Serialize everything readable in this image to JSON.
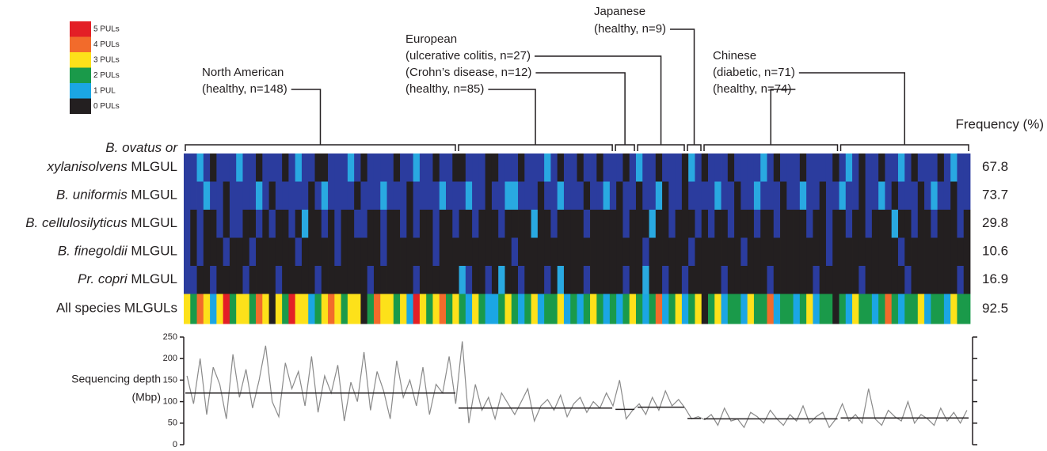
{
  "chart_data": [
    {
      "type": "heatmap",
      "legend": [
        "0 PULs",
        "1 PUL",
        "2 PULs",
        "3 PULs",
        "4 PULs",
        "5 PULs"
      ],
      "pul_colors": [
        "#231f20",
        "#1ba6e4",
        "#1a9a4a",
        "#fde11a",
        "#f26b2b",
        "#e31f26"
      ],
      "species_colors": [
        "#231f20",
        "#2b3c9e",
        "#29a9e1"
      ],
      "frequency_title": "Frequency (%)",
      "regions": [
        {
          "name": "North American",
          "cohorts": [
            {
              "label": "(healthy, n=148)",
              "n": 148
            }
          ]
        },
        {
          "name": "European",
          "cohorts": [
            {
              "label": "(healthy, n=85)",
              "n": 85
            },
            {
              "label": "(Crohn’s disease, n=12)",
              "n": 12
            },
            {
              "label": "(ulcerative colitis, n=27)",
              "n": 27
            }
          ]
        },
        {
          "name": "Japanese",
          "cohorts": [
            {
              "label": "(healthy, n=9)",
              "n": 9
            }
          ]
        },
        {
          "name": "Chinese",
          "cohorts": [
            {
              "label": "(healthy, n=74)",
              "n": 74
            },
            {
              "label": "(diabetic, n=71)",
              "n": 71
            }
          ]
        }
      ],
      "rows": [
        {
          "name_lines": [
            {
              "italic": "B. ovatus or"
            },
            {
              "italic": "xylanisolvens",
              "plain": "MLGUL"
            }
          ],
          "frequency": 67.8,
          "values": [
            1,
            1,
            2,
            1,
            0,
            1,
            1,
            1,
            2,
            1,
            1,
            0,
            1,
            1,
            1,
            0,
            1,
            2,
            1,
            1,
            0,
            0,
            1,
            1,
            1,
            2,
            1,
            0,
            1,
            1,
            1,
            1,
            0,
            1,
            1,
            2,
            1,
            1,
            0,
            1,
            1,
            0,
            0,
            1,
            1,
            1,
            0,
            0,
            1,
            1,
            1,
            0,
            1,
            1,
            1,
            2,
            1,
            0,
            1,
            1,
            0,
            1,
            1,
            0,
            1,
            1,
            1,
            0,
            1,
            2,
            1,
            1,
            0,
            1,
            1,
            1,
            0,
            2,
            1,
            0,
            1,
            1,
            1,
            0,
            1,
            1,
            1,
            1,
            2,
            1,
            0,
            1,
            1,
            1,
            0,
            1,
            1,
            1,
            1,
            0,
            1,
            2,
            1,
            0,
            1,
            1,
            0,
            1,
            1,
            2,
            1,
            0,
            1,
            1,
            1,
            0,
            1,
            2,
            1,
            1
          ]
        },
        {
          "name_lines": [
            {
              "italic": "B. uniformis",
              "plain": "MLGUL"
            }
          ],
          "frequency": 73.7,
          "values": [
            1,
            1,
            1,
            2,
            1,
            1,
            0,
            1,
            1,
            1,
            1,
            2,
            1,
            0,
            1,
            1,
            1,
            1,
            1,
            0,
            1,
            2,
            1,
            1,
            1,
            1,
            0,
            1,
            1,
            1,
            2,
            1,
            1,
            1,
            0,
            1,
            1,
            1,
            1,
            2,
            1,
            1,
            1,
            2,
            1,
            1,
            0,
            1,
            1,
            2,
            2,
            1,
            1,
            1,
            0,
            1,
            1,
            2,
            1,
            1,
            1,
            0,
            1,
            1,
            2,
            1,
            0,
            1,
            1,
            0,
            1,
            1,
            2,
            0,
            1,
            1,
            0,
            1,
            1,
            1,
            1,
            2,
            1,
            1,
            0,
            1,
            1,
            2,
            1,
            1,
            1,
            0,
            1,
            1,
            2,
            1,
            1,
            0,
            1,
            1,
            2,
            1,
            1,
            0,
            1,
            1,
            2,
            1,
            0,
            1,
            1,
            1,
            0,
            1,
            2,
            1,
            1,
            0,
            1,
            1
          ]
        },
        {
          "name_lines": [
            {
              "italic": "B. cellulosilyticus",
              "plain": "MLGUL"
            }
          ],
          "frequency": 29.8,
          "values": [
            1,
            0,
            1,
            0,
            0,
            1,
            0,
            1,
            1,
            0,
            0,
            1,
            0,
            1,
            0,
            0,
            1,
            0,
            2,
            0,
            0,
            1,
            0,
            1,
            0,
            0,
            1,
            1,
            0,
            0,
            1,
            0,
            0,
            1,
            0,
            1,
            0,
            0,
            1,
            0,
            0,
            1,
            0,
            0,
            1,
            0,
            0,
            0,
            1,
            0,
            0,
            0,
            0,
            2,
            0,
            0,
            1,
            0,
            0,
            0,
            0,
            1,
            0,
            0,
            0,
            0,
            0,
            1,
            0,
            0,
            0,
            2,
            0,
            0,
            1,
            0,
            0,
            0,
            1,
            0,
            1,
            0,
            0,
            1,
            0,
            0,
            0,
            1,
            0,
            0,
            1,
            0,
            0,
            0,
            0,
            1,
            0,
            0,
            1,
            0,
            0,
            1,
            0,
            0,
            1,
            0,
            0,
            0,
            2,
            0,
            0,
            1,
            0,
            0,
            1,
            0,
            0,
            0,
            1,
            0
          ]
        },
        {
          "name_lines": [
            {
              "italic": "B. finegoldii",
              "plain": "MLGUL"
            }
          ],
          "frequency": 10.6,
          "values": [
            1,
            0,
            1,
            0,
            0,
            0,
            1,
            0,
            0,
            0,
            1,
            0,
            0,
            0,
            0,
            0,
            0,
            1,
            0,
            0,
            0,
            0,
            0,
            1,
            0,
            0,
            0,
            0,
            0,
            0,
            1,
            0,
            0,
            0,
            0,
            0,
            0,
            0,
            1,
            0,
            0,
            0,
            0,
            0,
            0,
            0,
            0,
            0,
            0,
            0,
            1,
            0,
            0,
            0,
            0,
            0,
            0,
            0,
            0,
            0,
            0,
            0,
            0,
            0,
            0,
            0,
            0,
            0,
            0,
            0,
            1,
            0,
            0,
            0,
            0,
            0,
            0,
            1,
            0,
            0,
            0,
            0,
            0,
            0,
            0,
            1,
            0,
            0,
            0,
            0,
            0,
            0,
            0,
            0,
            0,
            0,
            0,
            0,
            1,
            0,
            0,
            0,
            0,
            0,
            0,
            0,
            0,
            0,
            0,
            1,
            0,
            0,
            0,
            0,
            0,
            0,
            0,
            0,
            0,
            0
          ]
        },
        {
          "name_lines": [
            {
              "italic": "Pr. copri",
              "plain": "MLGUL"
            }
          ],
          "frequency": 16.9,
          "values": [
            1,
            1,
            0,
            0,
            1,
            0,
            0,
            0,
            0,
            1,
            0,
            0,
            0,
            0,
            1,
            0,
            0,
            0,
            0,
            0,
            1,
            0,
            0,
            0,
            0,
            0,
            0,
            0,
            1,
            0,
            0,
            0,
            0,
            0,
            0,
            1,
            0,
            0,
            0,
            0,
            0,
            0,
            2,
            1,
            0,
            0,
            1,
            0,
            2,
            0,
            0,
            1,
            0,
            0,
            0,
            1,
            0,
            2,
            0,
            0,
            0,
            1,
            0,
            0,
            0,
            0,
            0,
            1,
            0,
            0,
            2,
            0,
            0,
            1,
            0,
            0,
            1,
            0,
            0,
            0,
            0,
            0,
            1,
            0,
            0,
            0,
            0,
            0,
            0,
            1,
            0,
            0,
            0,
            0,
            0,
            0,
            1,
            0,
            0,
            0,
            0,
            0,
            0,
            1,
            0,
            0,
            0,
            0,
            0,
            0,
            1,
            0,
            0,
            0,
            0,
            0,
            0,
            0,
            1,
            0
          ]
        },
        {
          "name_lines": [
            {
              "plain": "All species MLGULs"
            }
          ],
          "frequency": 92.5,
          "all_species": true,
          "values": [
            3,
            2,
            4,
            3,
            1,
            3,
            5,
            2,
            3,
            3,
            2,
            4,
            3,
            0,
            3,
            2,
            5,
            3,
            3,
            1,
            2,
            3,
            4,
            3,
            2,
            3,
            3,
            0,
            2,
            4,
            3,
            3,
            2,
            3,
            1,
            5,
            3,
            2,
            3,
            4,
            2,
            3,
            2,
            1,
            3,
            2,
            1,
            1,
            2,
            3,
            2,
            1,
            2,
            3,
            1,
            2,
            2,
            3,
            1,
            2,
            1,
            2,
            3,
            2,
            1,
            2,
            1,
            2,
            3,
            2,
            1,
            2,
            4,
            1,
            2,
            3,
            1,
            2,
            3,
            0,
            2,
            3,
            1,
            2,
            2,
            1,
            3,
            2,
            2,
            4,
            1,
            2,
            2,
            1,
            2,
            3,
            1,
            2,
            2,
            0,
            2,
            1,
            3,
            2,
            2,
            1,
            2,
            4,
            2,
            1,
            2,
            2,
            3,
            1,
            2,
            2,
            1,
            3,
            2,
            2
          ]
        }
      ]
    },
    {
      "type": "line",
      "ylabel_lines": [
        "Sequencing depth",
        "(Mbp)"
      ],
      "ylim": [
        0,
        250
      ],
      "yticks": [
        0,
        50,
        100,
        150,
        200,
        250
      ],
      "color": "#8a8a8a",
      "values": [
        160,
        95,
        200,
        70,
        180,
        140,
        60,
        210,
        110,
        175,
        85,
        150,
        230,
        100,
        65,
        190,
        130,
        170,
        90,
        205,
        75,
        160,
        120,
        185,
        55,
        145,
        100,
        215,
        80,
        170,
        125,
        60,
        195,
        110,
        150,
        90,
        180,
        70,
        140,
        120,
        205,
        95,
        240,
        50,
        140,
        80,
        110,
        60,
        120,
        95,
        70,
        100,
        130,
        55,
        90,
        105,
        80,
        115,
        65,
        95,
        110,
        75,
        100,
        85,
        120,
        90,
        150,
        60,
        80,
        95,
        70,
        110,
        80,
        125,
        90,
        105,
        85,
        60,
        65,
        58,
        70,
        45,
        85,
        55,
        60,
        40,
        75,
        65,
        50,
        80,
        60,
        45,
        70,
        55,
        90,
        50,
        65,
        75,
        40,
        60,
        95,
        55,
        70,
        50,
        130,
        60,
        45,
        80,
        65,
        55,
        100,
        50,
        70,
        60,
        45,
        85,
        55,
        75,
        50,
        80
      ],
      "cohort_means": [
        120,
        85,
        82,
        87,
        61,
        60,
        62
      ]
    }
  ]
}
